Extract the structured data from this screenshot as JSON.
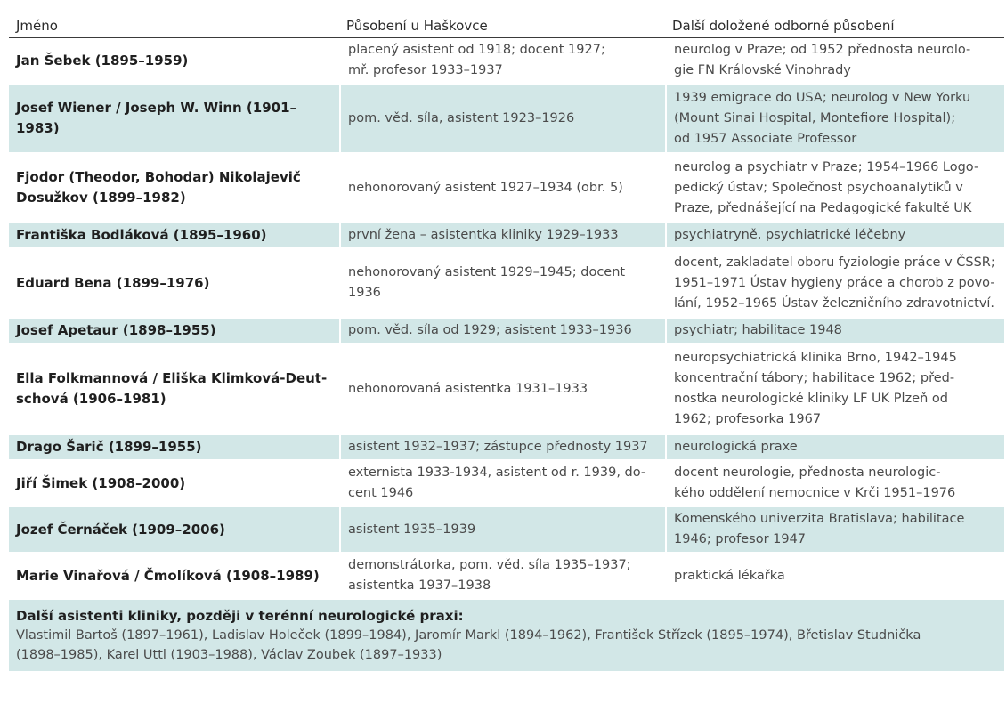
{
  "header": {
    "col1": "Jméno",
    "col2": "Působení u Haškovce",
    "col3": "Další doložené odborné působení"
  },
  "rows": [
    {
      "name": "Jan Šebek (1895–1959)",
      "role": [
        "placený asistent od 1918; docent 1927;",
        "mř. profesor 1933–1937"
      ],
      "other": [
        "neurolog v Praze; od 1952 přednosta neurolo-",
        "gie FN Královské Vinohrady"
      ]
    },
    {
      "name": "Josef Wiener / Joseph W. Winn (1901–1983)",
      "role": [
        "pom. věd. síla, asistent 1923–1926"
      ],
      "other": [
        "1939 emigrace do USA; neurolog v New Yorku",
        "(Mount Sinai Hospital, Montefiore Hospital);",
        "od 1957 Associate Professor"
      ]
    },
    {
      "name": "Fjodor (Theodor, Bohodar) Nikolajevič Dosužkov (1899–1982)",
      "name_lines": [
        "Fjodor (Theodor, Bohodar) Nikolajevič",
        "Dosužkov (1899–1982)"
      ],
      "role": [
        "nehonorovaný asistent 1927–1934 (obr. 5)"
      ],
      "other": [
        "neurolog a psychiatr v Praze; 1954–1966 Logo-",
        "pedický ústav; Společnost psychoanalytiků v",
        "Praze, přednášející na Pedagogické fakultě UK"
      ]
    },
    {
      "name": "Františka Bodláková (1895–1960)",
      "role": [
        "první žena – asistentka kliniky 1929–1933"
      ],
      "other": [
        "psychiatryně, psychiatrické léčebny"
      ]
    },
    {
      "name": "Eduard Bena (1899–1976)",
      "role": [
        "nehonorovaný asistent 1929–1945; docent",
        "1936"
      ],
      "other": [
        "docent, zakladatel oboru fyziologie práce v ČSSR;",
        "1951–1971 Ústav hygieny práce a chorob z povo-",
        "lání, 1952–1965 Ústav železničního zdravotnictví."
      ]
    },
    {
      "name": "Josef Apetaur (1898–1955)",
      "role": [
        "pom. věd. síla od 1929; asistent 1933–1936"
      ],
      "other": [
        "psychiatr; habilitace 1948"
      ]
    },
    {
      "name": "Ella Folkmannová / Eliška Klimková-Deutschová (1906–1981)",
      "name_lines": [
        "Ella Folkmannová / Eliška Klimková-Deut-",
        "schová (1906–1981)"
      ],
      "role": [
        "nehonorovaná asistentka 1931–1933"
      ],
      "other": [
        "neuropsychiatrická klinika Brno, 1942–1945",
        "koncentrační tábory; habilitace 1962; před-",
        "nostka neurologické kliniky LF UK Plzeň od",
        "1962; profesorka 1967"
      ]
    },
    {
      "name": "Drago Šarič (1899–1955)",
      "role": [
        "asistent 1932–1937; zástupce přednosty 1937"
      ],
      "other": [
        "neurologická praxe"
      ]
    },
    {
      "name": "Jiří Šimek (1908–2000)",
      "role": [
        "externista 1933-1934, asistent od r. 1939, do-",
        "cent 1946"
      ],
      "other": [
        "docent neurologie, přednosta neurologic-",
        "kého oddělení nemocnice v Krči 1951–1976"
      ]
    },
    {
      "name": "Jozef Černáček (1909–2006)",
      "role": [
        "asistent 1935–1939"
      ],
      "other": [
        "Komenského univerzita Bratislava; habilitace",
        "1946; profesor 1947"
      ]
    },
    {
      "name": "Marie Vinařová / Čmolíková (1908–1989)",
      "role": [
        "demonstrátorka, pom. věd. síla 1935–1937;",
        "asistentka 1937–1938"
      ],
      "other": [
        "praktická lékařka"
      ]
    }
  ],
  "footer": {
    "title": "Další asistenti kliniky, později v terénní neurologické praxi:",
    "text": [
      "Vlastimil Bartoš (1897–1961), Ladislav Holeček (1899–1984), Jaromír Markl (1894–1962), František Střízek (1895–1974), Břetislav Studnička",
      "(1898–1985), Karel Uttl (1903–1988), Václav Zoubek (1897–1933)"
    ]
  },
  "colors": {
    "stripe": "#d2e7e7",
    "header_rule": "#3a3a3a"
  }
}
